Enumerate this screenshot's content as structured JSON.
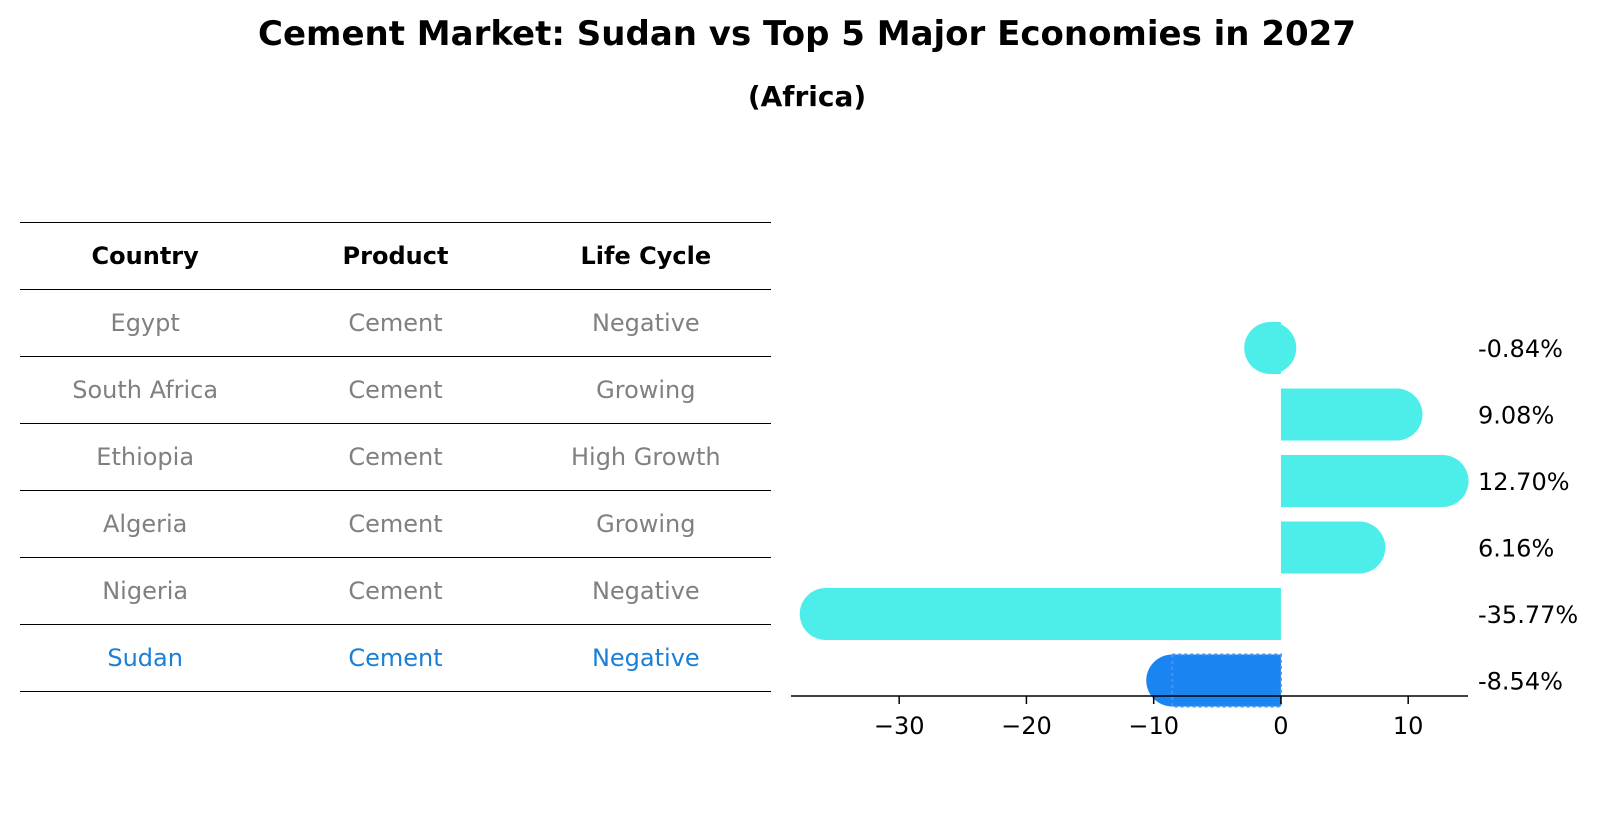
{
  "title": "Cement Market: Sudan vs Top 5 Major Economies in 2027",
  "subtitle": "(Africa)",
  "table": {
    "headers": [
      "Country",
      "Product",
      "Life Cycle"
    ],
    "rows": [
      [
        "Egypt",
        "Cement",
        "Negative"
      ],
      [
        "South Africa",
        "Cement",
        "Growing"
      ],
      [
        "Ethiopia",
        "Cement",
        "High Growth"
      ],
      [
        "Algeria",
        "Cement",
        "Growing"
      ],
      [
        "Nigeria",
        "Cement",
        "Negative"
      ],
      [
        "Sudan",
        "Cement",
        "Negative"
      ]
    ],
    "highlight_color": "#1a7fd6"
  },
  "chart_data": {
    "type": "bar",
    "orientation": "horizontal",
    "categories": [
      "Egypt",
      "South Africa",
      "Ethiopia",
      "Algeria",
      "Nigeria",
      "Sudan"
    ],
    "values": [
      -0.84,
      9.08,
      12.7,
      6.16,
      -35.77,
      -8.54
    ],
    "value_labels": [
      "-0.84%",
      "9.08%",
      "12.70%",
      "6.16%",
      "-35.77%",
      "-8.54%"
    ],
    "bar_color": "#4deeea",
    "highlight_color": "#1a85f0",
    "highlight_index": 5,
    "xlim": [
      -38.5,
      14.7
    ],
    "xticks": [
      -30,
      -20,
      -10,
      0,
      10
    ],
    "xtick_labels": [
      "−30",
      "−20",
      "−10",
      "0",
      "10"
    ],
    "grid": false
  }
}
